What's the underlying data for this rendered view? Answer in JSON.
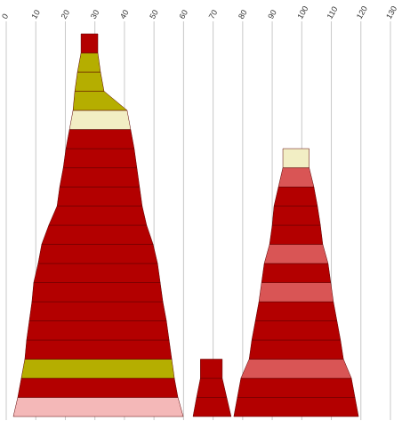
{
  "chart_data": {
    "type": "cone",
    "xlim": [
      0,
      130
    ],
    "xticks": [
      0,
      10,
      20,
      30,
      40,
      50,
      60,
      70,
      80,
      90,
      100,
      110,
      120,
      130
    ],
    "grid": true,
    "stacks": [
      {
        "layers": [
          {
            "range": [
              2.4,
              59.9
            ],
            "color": "#f4b8b8"
          },
          {
            "range": [
              3.9,
              58.1
            ],
            "color": "#b30000"
          },
          {
            "range": [
              5.1,
              56.9
            ],
            "color": "#b5ae00"
          },
          {
            "range": [
              6.3,
              56.0
            ],
            "color": "#b30000"
          },
          {
            "range": [
              6.9,
              55.1
            ],
            "color": "#b30000"
          },
          {
            "range": [
              7.8,
              54.2
            ],
            "color": "#b30000"
          },
          {
            "range": [
              8.7,
              53.0
            ],
            "color": "#b30000"
          },
          {
            "range": [
              9.3,
              52.1
            ],
            "color": "#b30000"
          },
          {
            "range": [
              10.8,
              51.2
            ],
            "color": "#b30000"
          },
          {
            "range": [
              12.0,
              49.7
            ],
            "color": "#b30000"
          },
          {
            "range": [
              14.4,
              47.5
            ],
            "color": "#b30000"
          },
          {
            "range": [
              17.2,
              46.0
            ],
            "color": "#b30000"
          },
          {
            "range": [
              18.1,
              45.1
            ],
            "color": "#b30000"
          },
          {
            "range": [
              19.3,
              44.2
            ],
            "color": "#b30000"
          },
          {
            "range": [
              20.2,
              43.3
            ],
            "color": "#b30000"
          },
          {
            "range": [
              21.4,
              42.1
            ],
            "color": "#f2eec4"
          },
          {
            "range": [
              22.6,
              40.9
            ],
            "color": "#b5ae00"
          },
          {
            "range": [
              23.2,
              33.1
            ],
            "color": "#b5ae00"
          },
          {
            "range": [
              24.1,
              31.9
            ],
            "color": "#b5ae00"
          },
          {
            "range": [
              25.3,
              31.0
            ],
            "color": "#b30000"
          }
        ]
      },
      {
        "layers": [
          {
            "range": [
              63.2,
              76.1
            ],
            "color": "#b30000"
          },
          {
            "range": [
              64.4,
              74.6
            ],
            "color": "#b30000"
          },
          {
            "range": [
              65.7,
              73.1
            ],
            "color": "#b30000"
          }
        ]
      },
      {
        "layers": [
          {
            "range": [
              77.0,
              119.2
            ],
            "color": "#b30000"
          },
          {
            "range": [
              78.2,
              118.0
            ],
            "color": "#b30000"
          },
          {
            "range": [
              79.4,
              116.8
            ],
            "color": "#d95555"
          },
          {
            "range": [
              82.2,
              114.1
            ],
            "color": "#b30000"
          },
          {
            "range": [
              83.1,
              113.1
            ],
            "color": "#b30000"
          },
          {
            "range": [
              84.3,
              111.9
            ],
            "color": "#b30000"
          },
          {
            "range": [
              85.5,
              110.7
            ],
            "color": "#d95555"
          },
          {
            "range": [
              86.4,
              109.8
            ],
            "color": "#b30000"
          },
          {
            "range": [
              87.3,
              108.9
            ],
            "color": "#d95555"
          },
          {
            "range": [
              89.1,
              107.1
            ],
            "color": "#b30000"
          },
          {
            "range": [
              90.0,
              106.3
            ],
            "color": "#b30000"
          },
          {
            "range": [
              90.6,
              105.3
            ],
            "color": "#b30000"
          },
          {
            "range": [
              92.1,
              104.1
            ],
            "color": "#d95555"
          },
          {
            "range": [
              93.6,
              102.5
            ],
            "color": "#f2eec4"
          }
        ]
      }
    ]
  }
}
